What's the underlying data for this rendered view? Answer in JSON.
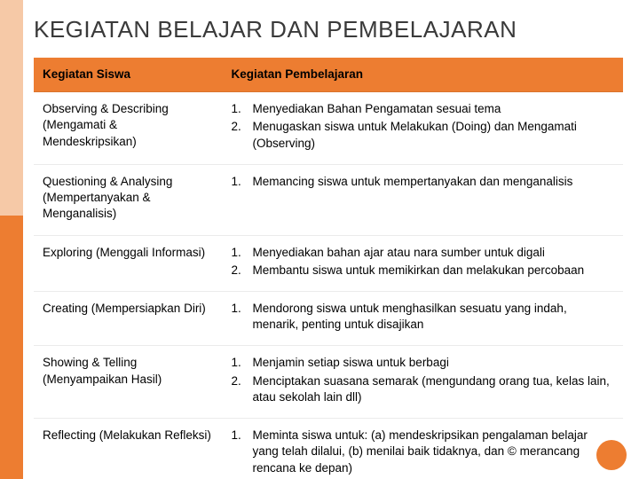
{
  "colors": {
    "accent": "#ed7d31",
    "accent_light": "#f6c9a7",
    "header_bg": "#ed7d31",
    "header_text": "#000000",
    "row_border": "#e6e6e6",
    "title_color": "#3a3a3a",
    "badge_bg": "#ed7d31",
    "badge_text": "#ffffff",
    "left_bar_top": "#f6c9a7",
    "left_bar_bottom": "#ed7d31",
    "background": "#ffffff"
  },
  "layout": {
    "slide_width": 720,
    "slide_height": 540,
    "left_bar_width": 26,
    "title_fontsize": 26,
    "body_fontsize": 13.5,
    "col1_width_pct": 32
  },
  "title": "KEGIATAN BELAJAR DAN PEMBELAJARAN",
  "table": {
    "columns": [
      "Kegiatan Siswa",
      "Kegiatan Pembelajaran"
    ],
    "rows": [
      {
        "siswa": "Observing & Describing (Mengamati & Mendeskripsikan)",
        "pembelajaran": [
          "Menyediakan Bahan Pengamatan sesuai tema",
          "Menugaskan siswa untuk Melakukan (Doing) dan Mengamati (Observing)"
        ]
      },
      {
        "siswa": "Questioning & Analysing (Mempertanyakan & Menganalisis)",
        "pembelajaran": [
          "Memancing siswa untuk mempertanyakan dan menganalisis"
        ]
      },
      {
        "siswa": "Exploring (Menggali Informasi)",
        "pembelajaran": [
          "Menyediakan bahan ajar atau nara sumber untuk digali",
          "Membantu siswa untuk memikirkan dan melakukan percobaan"
        ]
      },
      {
        "siswa": "Creating (Mempersiapkan Diri)",
        "pembelajaran": [
          "Mendorong siswa untuk menghasilkan sesuatu yang indah, menarik, penting untuk disajikan"
        ]
      },
      {
        "siswa": "Showing & Telling (Menyampaikan Hasil)",
        "pembelajaran": [
          "Menjamin setiap siswa untuk berbagi",
          "Menciptakan suasana semarak (mengundang orang tua, kelas lain, atau sekolah lain dll)"
        ]
      },
      {
        "siswa": "Reflecting (Melakukan Refleksi)",
        "pembelajaran": [
          "Meminta siswa untuk: (a) mendeskripsikan pengalaman belajar yang telah dilalui, (b) menilai baik tidaknya, dan © merancang rencana ke depan)"
        ]
      }
    ]
  },
  "badge": " "
}
